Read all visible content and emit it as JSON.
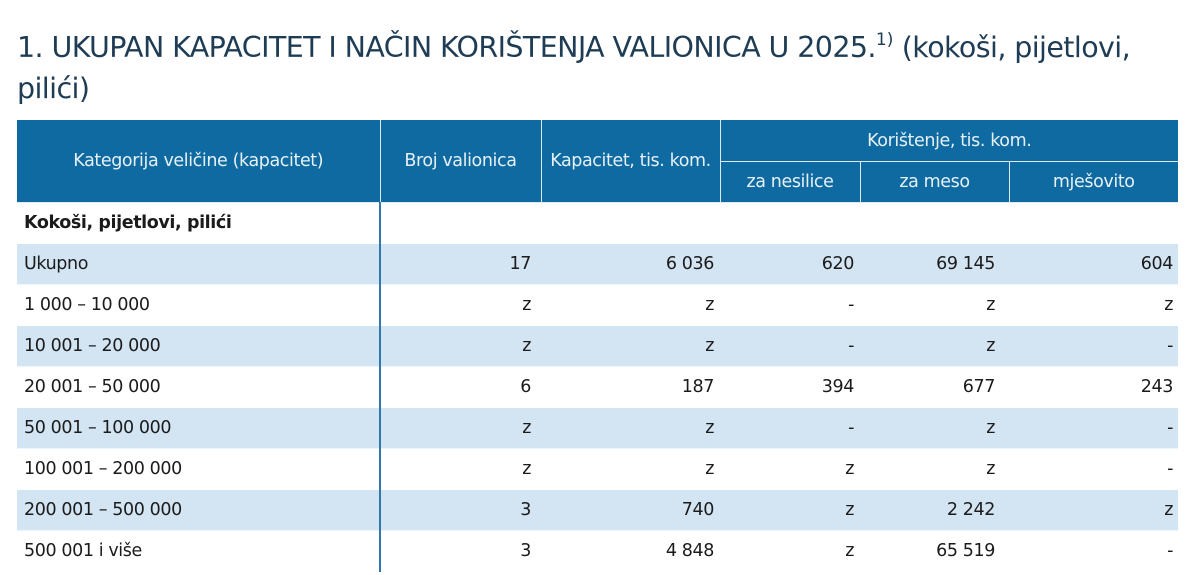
{
  "page": {
    "title_main": "1. UKUPAN KAPACITET I NAČIN KORIŠTENJA VALIONICA U 2025.",
    "title_footnote": "1)",
    "title_suffix": " (kokoši, pijetlovi, pilići)"
  },
  "table": {
    "headers": {
      "category": "Kategorija veličine (kapacitet)",
      "count": "Broj valionica",
      "capacity": "Kapacitet, tis. kom.",
      "usage_group": "Korištenje, tis. kom.",
      "layers": "za nesilice",
      "meat": "za meso",
      "mixed": "mješovito"
    },
    "group_label": "Kokoši, pijetlovi, pilići",
    "rows": [
      {
        "label": "Ukupno",
        "count": "17",
        "capacity": "6 036",
        "layers": "620",
        "meat": "69 145",
        "mixed": "604"
      },
      {
        "label": "1 000 – 10 000",
        "count": "z",
        "capacity": "z",
        "layers": "-",
        "meat": "z",
        "mixed": "z"
      },
      {
        "label": "10 001 – 20 000",
        "count": "z",
        "capacity": "z",
        "layers": "-",
        "meat": "z",
        "mixed": "-"
      },
      {
        "label": "20 001 – 50 000",
        "count": "6",
        "capacity": "187",
        "layers": "394",
        "meat": "677",
        "mixed": "243"
      },
      {
        "label": "50 001 – 100 000",
        "count": "z",
        "capacity": "z",
        "layers": "-",
        "meat": "z",
        "mixed": "-"
      },
      {
        "label": "100 001 – 200 000",
        "count": "z",
        "capacity": "z",
        "layers": "z",
        "meat": "z",
        "mixed": "-"
      },
      {
        "label": "200 001 – 500 000",
        "count": "3",
        "capacity": "740",
        "layers": "z",
        "meat": "2 242",
        "mixed": "z"
      },
      {
        "label": "500 001 i više",
        "count": "3",
        "capacity": "4 848",
        "layers": "z",
        "meat": "65 519",
        "mixed": "-"
      }
    ]
  },
  "colors": {
    "header_bg": "#0e6aa0",
    "header_text": "#e6f0f7",
    "stripe_bg": "#d3e4f3",
    "title_text": "#1f3c55",
    "divider": "#2f77ad"
  }
}
